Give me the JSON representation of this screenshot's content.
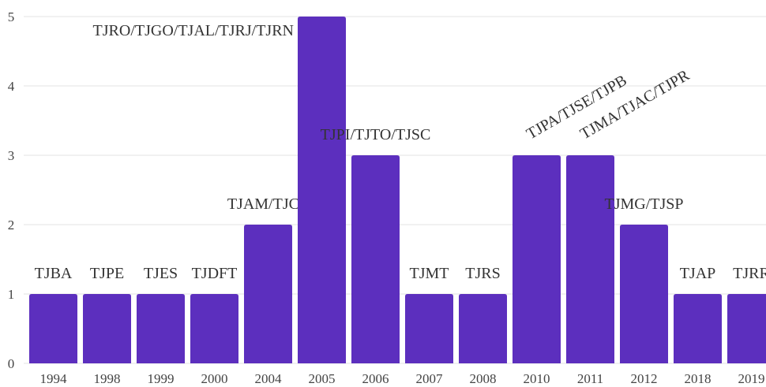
{
  "chart_data": {
    "type": "bar",
    "categories": [
      "1994",
      "1998",
      "1999",
      "2000",
      "2004",
      "2005",
      "2006",
      "2007",
      "2008",
      "2010",
      "2011",
      "2012",
      "2018",
      "2019"
    ],
    "values": [
      1,
      1,
      1,
      1,
      2,
      5,
      3,
      1,
      1,
      3,
      3,
      2,
      1,
      1
    ],
    "labels": [
      "TJBA",
      "TJPE",
      "TJES",
      "TJDFT",
      "TJAM/TJCE",
      "TJRO/TJGO/TJAL/TJRJ/TJRN",
      "TJPI/TJTO/TJSC",
      "TJMT",
      "TJRS",
      "TJPA/TJSE/TJPB",
      "TJMA/TJAC/TJPR",
      "TJMG/TJSP",
      "TJAP",
      "TJRR"
    ],
    "color": "#5c2fbe",
    "ylim": [
      0,
      5
    ],
    "yticks": [
      0,
      1,
      2,
      3,
      4,
      5
    ],
    "grid": true
  }
}
